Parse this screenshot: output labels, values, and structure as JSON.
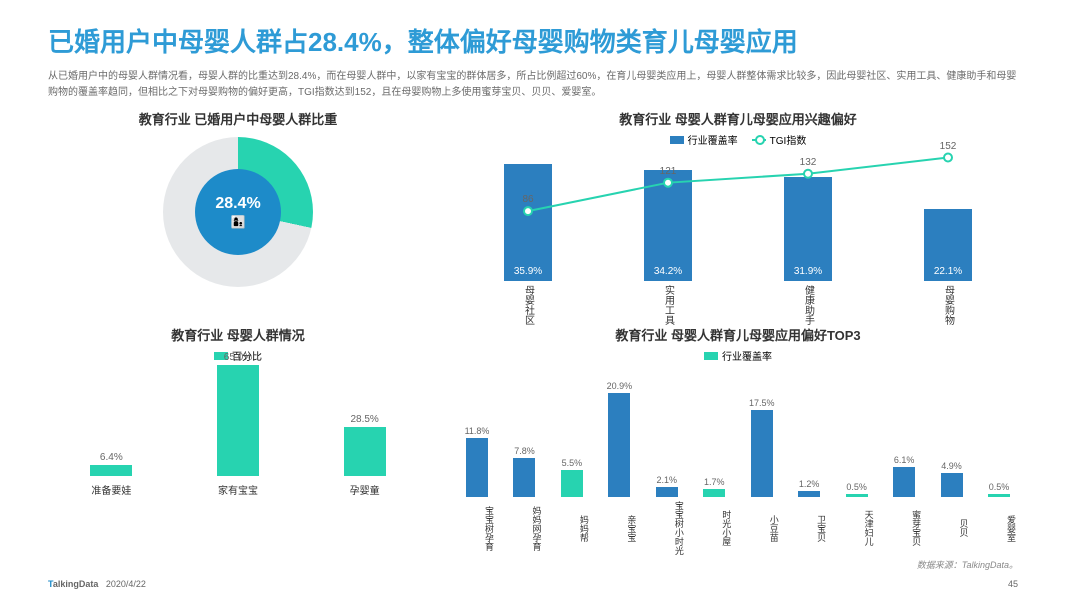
{
  "colors": {
    "title": "#2e9bd6",
    "subtitle": "#6b6b6b",
    "blue": "#2c7fbf",
    "teal": "#27d3b0",
    "pie_ring_empty": "#e6e8ea",
    "pie_center": "#1d8bc9",
    "text": "#333333"
  },
  "title": "已婚用户中母婴人群占28.4%，整体偏好母婴购物类育儿母婴应用",
  "subtitle": "从已婚用户中的母婴人群情况看，母婴人群的比重达到28.4%，而在母婴人群中，以家有宝宝的群体居多，所占比例超过60%，在育儿母婴类应用上，母婴人群整体需求比较多，因此母婴社区、实用工具、健康助手和母婴购物的覆盖率趋同，但相比之下对母婴购物的偏好更高，TGI指数达到152，且在母婴购物上多使用蜜芽宝贝、贝贝、爱婴室。",
  "pie": {
    "title": "教育行业  已婚用户中母婴人群比重",
    "value_pct": 28.4,
    "label": "28.4%",
    "ring_color": "#27d3b0",
    "empty_color": "#e6e8ea",
    "center_color": "#1d8bc9",
    "icon": "👩‍👦"
  },
  "situation": {
    "title": "教育行业  母婴人群情况",
    "legend": "百分比",
    "bar_color": "#27d3b0",
    "y_max": 70,
    "items": [
      {
        "label": "准备要娃",
        "value": 6.4,
        "text": "6.4%"
      },
      {
        "label": "家有宝宝",
        "value": 65.0,
        "text": "65.0%"
      },
      {
        "label": "孕婴童",
        "value": 28.5,
        "text": "28.5%"
      }
    ]
  },
  "interest": {
    "title": "教育行业  母婴人群育儿母婴应用兴趣偏好",
    "legend_bar": "行业覆盖率",
    "legend_line": "TGI指数",
    "bar_color": "#2c7fbf",
    "line_color": "#27d3b0",
    "bar_y_max": 40,
    "tgi_y_max": 160,
    "items": [
      {
        "label": "母婴社区",
        "coverage": 35.9,
        "cov_text": "35.9%",
        "tgi": 86,
        "tgi_text": "86"
      },
      {
        "label": "实用工具",
        "coverage": 34.2,
        "cov_text": "34.2%",
        "tgi": 121,
        "tgi_text": "121"
      },
      {
        "label": "健康助手",
        "coverage": 31.9,
        "cov_text": "31.9%",
        "tgi": 132,
        "tgi_text": "132"
      },
      {
        "label": "母婴购物",
        "coverage": 22.1,
        "cov_text": "22.1%",
        "tgi": 152,
        "tgi_text": "152"
      }
    ]
  },
  "top3": {
    "title": "教育行业  母婴人群育儿母婴应用偏好TOP3",
    "legend": "行业覆盖率",
    "y_max": 22,
    "items": [
      {
        "label": "宝宝树孕育",
        "value": 11.8,
        "text": "11.8%",
        "color": "#2c7fbf"
      },
      {
        "label": "妈妈网孕育",
        "value": 7.8,
        "text": "7.8%",
        "color": "#2c7fbf"
      },
      {
        "label": "妈妈帮",
        "value": 5.5,
        "text": "5.5%",
        "color": "#27d3b0"
      },
      {
        "label": "亲宝宝",
        "value": 20.9,
        "text": "20.9%",
        "color": "#2c7fbf"
      },
      {
        "label": "宝宝树小时光",
        "value": 2.1,
        "text": "2.1%",
        "color": "#2c7fbf"
      },
      {
        "label": "时光小屋",
        "value": 1.7,
        "text": "1.7%",
        "color": "#27d3b0"
      },
      {
        "label": "小豆苗",
        "value": 17.5,
        "text": "17.5%",
        "color": "#2c7fbf"
      },
      {
        "label": "卫宝贝",
        "value": 1.2,
        "text": "1.2%",
        "color": "#2c7fbf"
      },
      {
        "label": "天津妇儿",
        "value": 0.5,
        "text": "0.5%",
        "color": "#27d3b0"
      },
      {
        "label": "蜜芽宝贝",
        "value": 6.1,
        "text": "6.1%",
        "color": "#2c7fbf"
      },
      {
        "label": "贝贝",
        "value": 4.9,
        "text": "4.9%",
        "color": "#2c7fbf"
      },
      {
        "label": "爱婴室",
        "value": 0.5,
        "text": "0.5%",
        "color": "#27d3b0"
      }
    ]
  },
  "source": "数据来源：TalkingData。",
  "footer": {
    "logo_a": "T",
    "logo_b": "alkingData",
    "date": "2020/4/22",
    "page": "45"
  }
}
